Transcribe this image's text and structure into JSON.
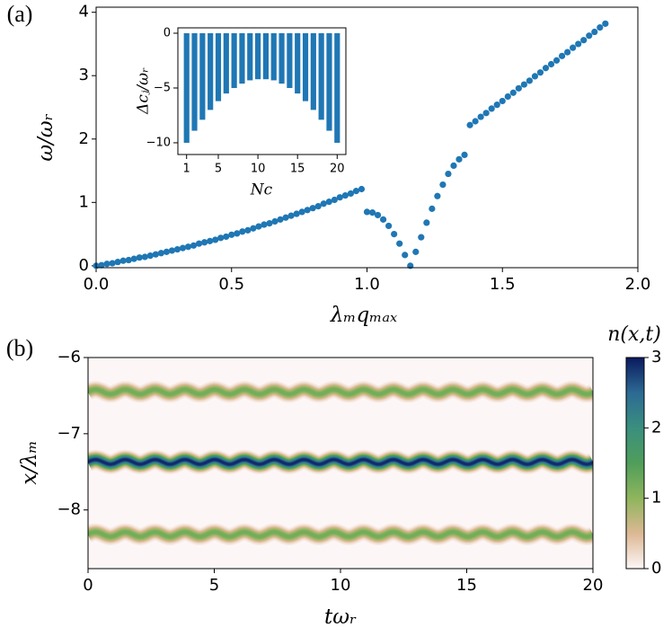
{
  "chart_data": [
    {
      "type": "scatter",
      "panel_label": "(a)",
      "xlabel": "λₘqₘₐₓ",
      "ylabel": "ω/ωᵣ",
      "color": "#1f77b4",
      "xlim": [
        0,
        2
      ],
      "ylim": [
        -0.03,
        4.08
      ],
      "xticks": [
        {
          "value": 0,
          "label": "0.0"
        },
        {
          "value": 0.5,
          "label": "0.5"
        },
        {
          "value": 1,
          "label": "1.0"
        },
        {
          "value": 1.5,
          "label": "1.5"
        },
        {
          "value": 2,
          "label": "2.0"
        }
      ],
      "yticks": [
        0,
        1,
        2,
        3,
        4
      ],
      "x": [
        0,
        0.02,
        0.04,
        0.06,
        0.08,
        0.1,
        0.12,
        0.14,
        0.16,
        0.18,
        0.2,
        0.22,
        0.24,
        0.26,
        0.28,
        0.3,
        0.32,
        0.34,
        0.36,
        0.38,
        0.4,
        0.42,
        0.44,
        0.46,
        0.48,
        0.5,
        0.52,
        0.54,
        0.56,
        0.58,
        0.6,
        0.62,
        0.64,
        0.66,
        0.68,
        0.7,
        0.72,
        0.74,
        0.76,
        0.78,
        0.8,
        0.82,
        0.84,
        0.86,
        0.88,
        0.9,
        0.92,
        0.94,
        0.96,
        0.98,
        1,
        1.02,
        1.04,
        1.06,
        1.08,
        1.1,
        1.12,
        1.14,
        1.16,
        1.18,
        1.2,
        1.22,
        1.24,
        1.26,
        1.28,
        1.3,
        1.32,
        1.34,
        1.36,
        1.38,
        1.4,
        1.42,
        1.44,
        1.46,
        1.48,
        1.5,
        1.52,
        1.54,
        1.56,
        1.58,
        1.6,
        1.62,
        1.64,
        1.66,
        1.68,
        1.7,
        1.72,
        1.74,
        1.76,
        1.78,
        1.8,
        1.82,
        1.84,
        1.86,
        1.88
      ],
      "y": [
        0,
        0.01,
        0.03,
        0.04,
        0.06,
        0.08,
        0.09,
        0.11,
        0.13,
        0.14,
        0.16,
        0.18,
        0.2,
        0.22,
        0.24,
        0.26,
        0.28,
        0.3,
        0.32,
        0.35,
        0.37,
        0.39,
        0.41,
        0.44,
        0.46,
        0.49,
        0.51,
        0.54,
        0.56,
        0.59,
        0.62,
        0.65,
        0.67,
        0.7,
        0.73,
        0.76,
        0.79,
        0.82,
        0.85,
        0.88,
        0.91,
        0.94,
        0.98,
        1.01,
        1.04,
        1.08,
        1.11,
        1.14,
        1.18,
        1.21,
        0.85,
        0.84,
        0.8,
        0.73,
        0.63,
        0.5,
        0.35,
        0.17,
        0,
        0.22,
        0.45,
        0.68,
        0.9,
        1.1,
        1.28,
        1.45,
        1.58,
        1.68,
        1.75,
        2.22,
        2.28,
        2.35,
        2.41,
        2.48,
        2.54,
        2.6,
        2.67,
        2.73,
        2.8,
        2.86,
        2.92,
        2.99,
        3.05,
        3.12,
        3.18,
        3.24,
        3.31,
        3.37,
        3.44,
        3.5,
        3.56,
        3.63,
        3.69,
        3.76,
        3.82
      ]
    },
    {
      "type": "bar",
      "xlabel": "Nc",
      "ylabel": "Δcⱼ/ωᵣ",
      "color": "#1f77b4",
      "x": [
        1,
        2,
        3,
        4,
        5,
        6,
        7,
        8,
        9,
        10,
        11,
        12,
        13,
        14,
        15,
        16,
        17,
        18,
        19,
        20
      ],
      "values": [
        -10,
        -8.9,
        -7.9,
        -7,
        -6.2,
        -5.5,
        -5,
        -4.6,
        -4.3,
        -4.2,
        -4.2,
        -4.3,
        -4.6,
        -5,
        -5.5,
        -6.2,
        -7,
        -7.9,
        -8.9,
        -10
      ],
      "xlim": [
        -0.1,
        21.1
      ],
      "ylim": [
        -11.07,
        0.49
      ],
      "xticks": [
        1,
        5,
        10,
        15,
        20
      ],
      "yticks": [
        0,
        {
          "value": -5,
          "label": "−5"
        },
        {
          "value": -10,
          "label": "−10"
        }
      ]
    },
    {
      "type": "heatmap",
      "panel_label": "(b)",
      "xlabel": "tωᵣ",
      "ylabel": "x/λₘ",
      "colorbar_label": "n(x,t)",
      "xlim": [
        0,
        20
      ],
      "ylim": [
        -8.77,
        -6
      ],
      "xticks": [
        0,
        5,
        10,
        15,
        20
      ],
      "yticks": [
        {
          "value": -6,
          "label": "−6"
        },
        {
          "value": -7,
          "label": "−7"
        },
        {
          "value": -8,
          "label": "−8"
        }
      ],
      "clim": [
        0,
        3
      ],
      "cticks": [
        0,
        1,
        2,
        3
      ],
      "colormap": [
        "#fdf6f6",
        "#dcb894",
        "#8fb55c",
        "#4f9e5a",
        "#3a8f7e",
        "#2c6a94",
        "#0b1a5e"
      ],
      "band_width": 0.05,
      "wiggle_amplitude": 0.03,
      "wiggle_period": 1.18,
      "bands": [
        {
          "center": -6.45,
          "peak": 1.3
        },
        {
          "center": -7.37,
          "peak": 3
        },
        {
          "center": -8.32,
          "peak": 1.3
        }
      ]
    }
  ]
}
